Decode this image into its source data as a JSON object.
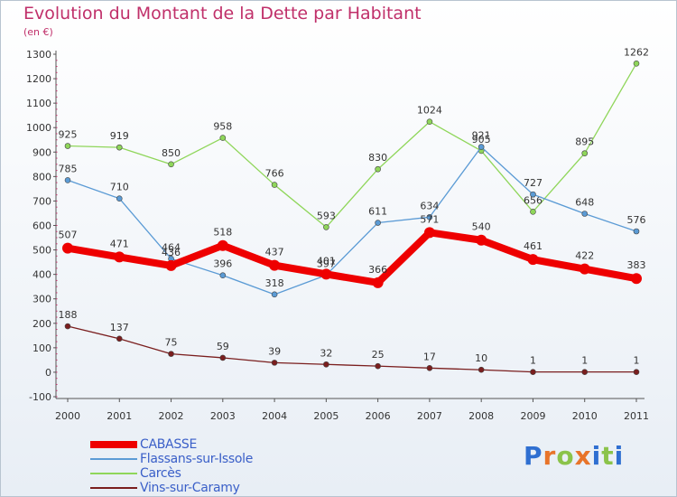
{
  "title": "Evolution du Montant de la Dette par Habitant",
  "subtitle": "(en €)",
  "logo_text": "Proxiti",
  "chart_data": {
    "type": "line",
    "title": "Evolution du Montant de la Dette par Habitant",
    "subtitle": "(en €)",
    "xlabel": "",
    "ylabel": "",
    "x": [
      "2000",
      "2001",
      "2002",
      "2003",
      "2004",
      "2005",
      "2006",
      "2007",
      "2008",
      "2009",
      "2010",
      "2011"
    ],
    "ylim": [
      -100,
      1300
    ],
    "yticks": [
      "-100",
      "0",
      "100",
      "200",
      "300",
      "400",
      "500",
      "600",
      "700",
      "800",
      "900",
      "1000",
      "1100",
      "1200",
      "1300"
    ],
    "grid": false,
    "legend_position": "bottom",
    "series": [
      {
        "name": "CABASSE",
        "color": "#ee0000",
        "values": [
          507,
          471,
          436,
          518,
          437,
          401,
          366,
          571,
          540,
          461,
          422,
          383
        ],
        "labels": [
          "507",
          "471",
          "436",
          "518",
          "437",
          "401",
          "366",
          "571",
          "540",
          "461",
          "422",
          "383"
        ]
      },
      {
        "name": "Flassans-sur-Issole",
        "color": "#5b9bd5",
        "values": [
          785,
          710,
          464,
          396,
          318,
          397,
          611,
          634,
          921,
          727,
          648,
          576
        ],
        "labels": [
          "785",
          "710",
          "464",
          "396",
          "318",
          "397",
          "611",
          "634",
          "921",
          "727",
          "648",
          "576"
        ]
      },
      {
        "name": "Carcès",
        "color": "#8fd65a",
        "values": [
          925,
          919,
          850,
          958,
          766,
          593,
          830,
          1024,
          905,
          656,
          895,
          1262
        ],
        "labels": [
          "925",
          "919",
          "850",
          "958",
          "766",
          "593",
          "830",
          "1024",
          "905",
          "656",
          "895",
          "1262"
        ]
      },
      {
        "name": "Vins-sur-Caramy",
        "color": "#7a1e1e",
        "values": [
          188,
          137,
          75,
          59,
          39,
          32,
          25,
          17,
          10,
          1,
          1,
          1
        ],
        "labels": [
          "188",
          "137",
          "75",
          "59",
          "39",
          "32",
          "25",
          "17",
          "10",
          "1",
          "1",
          "1"
        ]
      }
    ]
  }
}
